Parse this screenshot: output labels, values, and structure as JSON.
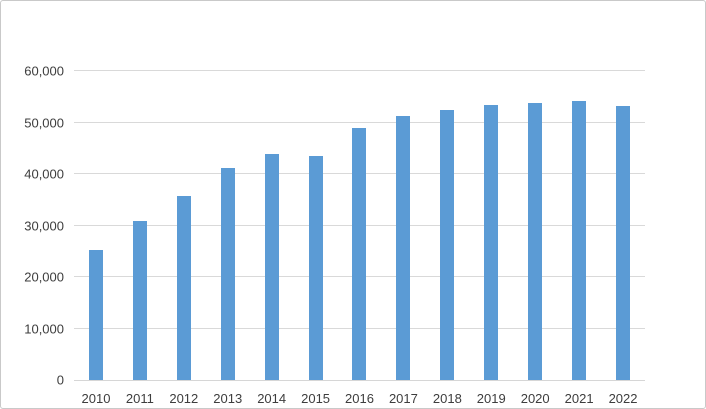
{
  "chart_data": {
    "type": "bar",
    "title": "",
    "xlabel": "",
    "ylabel": "",
    "categories": [
      "2010",
      "2011",
      "2012",
      "2013",
      "2014",
      "2015",
      "2016",
      "2017",
      "2018",
      "2019",
      "2020",
      "2021",
      "2022"
    ],
    "values": [
      25200,
      30900,
      35800,
      41200,
      43800,
      43500,
      48900,
      51300,
      52400,
      53400,
      53700,
      54200,
      53200
    ],
    "ylim": [
      0,
      60000
    ],
    "ytick_interval": 10000,
    "ytick_labels": [
      "0",
      "10,000",
      "20,000",
      "30,000",
      "40,000",
      "50,000",
      "60,000"
    ],
    "grid": true,
    "legend": false,
    "colors": {
      "bar": "#5b9bd5",
      "gridline": "#d9d9d9",
      "axis_line": "#d6d6d6",
      "label": "#3d3d3d",
      "frame_border": "#c9c9c9"
    }
  }
}
